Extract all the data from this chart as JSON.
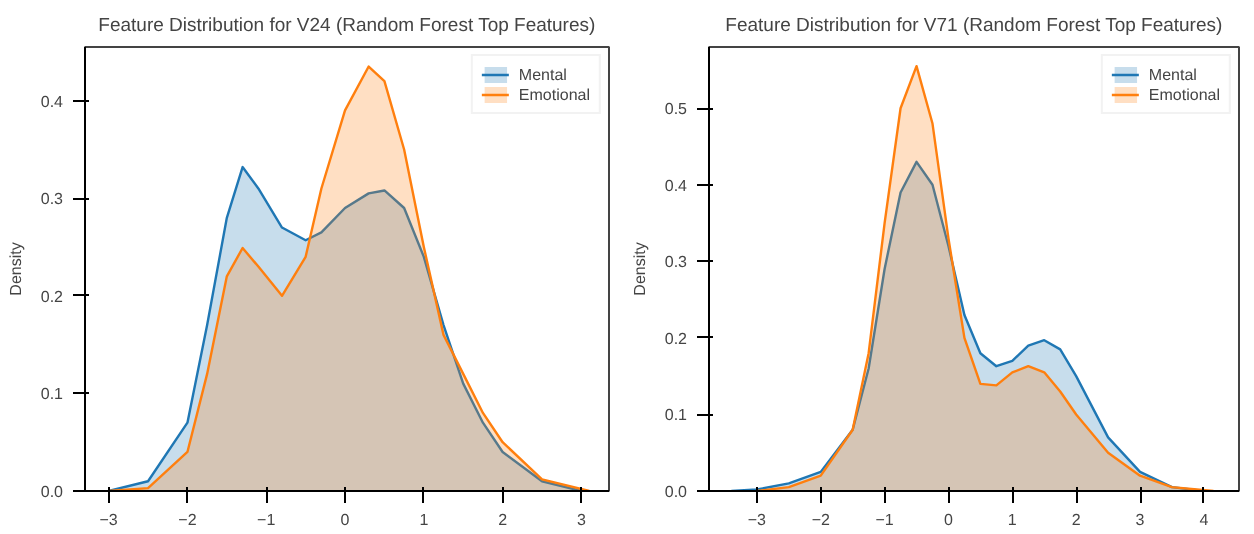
{
  "chart_data": [
    {
      "type": "area",
      "title": "Feature Distribution for V24 (Random Forest Top Features)",
      "ylabel": "Density",
      "legend": "top right",
      "grid": false,
      "xlim": [
        -3.3,
        3.35
      ],
      "ylim": [
        0,
        0.455
      ],
      "xticks": [
        -3,
        -2,
        -1,
        0,
        1,
        2,
        3
      ],
      "yticks": [
        {
          "value": 0,
          "label": "0.0"
        },
        {
          "value": 0.1,
          "label": "0.1"
        },
        {
          "value": 0.2,
          "label": "0.2"
        },
        {
          "value": 0.3,
          "label": "0.3"
        },
        {
          "value": 0.4,
          "label": "0.4"
        }
      ],
      "series": [
        {
          "name": "Mental",
          "color": "#1f77b4",
          "x": [
            -3,
            -2.5,
            -2,
            -1.75,
            -1.5,
            -1.3,
            -1.1,
            -0.8,
            -0.5,
            -0.3,
            0,
            0.3,
            0.5,
            0.75,
            1,
            1.25,
            1.5,
            1.75,
            2,
            2.5,
            3
          ],
          "values": [
            0.0,
            0.01,
            0.07,
            0.17,
            0.28,
            0.332,
            0.31,
            0.27,
            0.257,
            0.265,
            0.29,
            0.305,
            0.308,
            0.29,
            0.24,
            0.17,
            0.11,
            0.07,
            0.04,
            0.01,
            0.0
          ]
        },
        {
          "name": "Emotional",
          "color": "#ff7f0e",
          "x": [
            -3,
            -2.5,
            -2,
            -1.75,
            -1.5,
            -1.3,
            -1.1,
            -0.8,
            -0.5,
            -0.3,
            0,
            0.3,
            0.5,
            0.75,
            1,
            1.25,
            1.5,
            1.75,
            2,
            2.5,
            3.1
          ],
          "values": [
            0.0,
            0.003,
            0.04,
            0.12,
            0.22,
            0.249,
            0.23,
            0.2,
            0.24,
            0.31,
            0.39,
            0.435,
            0.42,
            0.35,
            0.25,
            0.16,
            0.12,
            0.08,
            0.05,
            0.012,
            0.0
          ]
        }
      ]
    },
    {
      "type": "area",
      "title": "Feature Distribution for V71 (Random Forest Top Features)",
      "ylabel": "Density",
      "legend": "top right",
      "grid": false,
      "xlim": [
        -3.75,
        4.55
      ],
      "ylim": [
        0,
        0.58
      ],
      "xticks": [
        -3,
        -2,
        -1,
        0,
        1,
        2,
        3,
        4
      ],
      "yticks": [
        {
          "value": 0,
          "label": "0.0"
        },
        {
          "value": 0.1,
          "label": "0.1"
        },
        {
          "value": 0.2,
          "label": "0.2"
        },
        {
          "value": 0.3,
          "label": "0.3"
        },
        {
          "value": 0.4,
          "label": "0.4"
        },
        {
          "value": 0.5,
          "label": "0.5"
        }
      ],
      "series": [
        {
          "name": "Mental",
          "color": "#1f77b4",
          "x": [
            -3.4,
            -3,
            -2.5,
            -2,
            -1.5,
            -1.25,
            -1,
            -0.75,
            -0.5,
            -0.25,
            0,
            0.25,
            0.5,
            0.75,
            1,
            1.25,
            1.5,
            1.75,
            2,
            2.5,
            3,
            3.5,
            4
          ],
          "values": [
            0.0,
            0.002,
            0.01,
            0.025,
            0.08,
            0.16,
            0.29,
            0.39,
            0.43,
            0.4,
            0.32,
            0.23,
            0.18,
            0.163,
            0.17,
            0.19,
            0.197,
            0.185,
            0.15,
            0.07,
            0.025,
            0.005,
            0.0
          ]
        },
        {
          "name": "Emotional",
          "color": "#ff7f0e",
          "x": [
            -3,
            -2.5,
            -2,
            -1.5,
            -1.25,
            -1,
            -0.75,
            -0.5,
            -0.25,
            0,
            0.25,
            0.5,
            0.75,
            1,
            1.25,
            1.5,
            1.75,
            2,
            2.5,
            3,
            3.5,
            4.15
          ],
          "values": [
            0.0,
            0.005,
            0.02,
            0.08,
            0.18,
            0.35,
            0.5,
            0.555,
            0.48,
            0.33,
            0.2,
            0.14,
            0.138,
            0.155,
            0.163,
            0.155,
            0.13,
            0.1,
            0.05,
            0.02,
            0.005,
            0.0
          ]
        }
      ]
    }
  ]
}
